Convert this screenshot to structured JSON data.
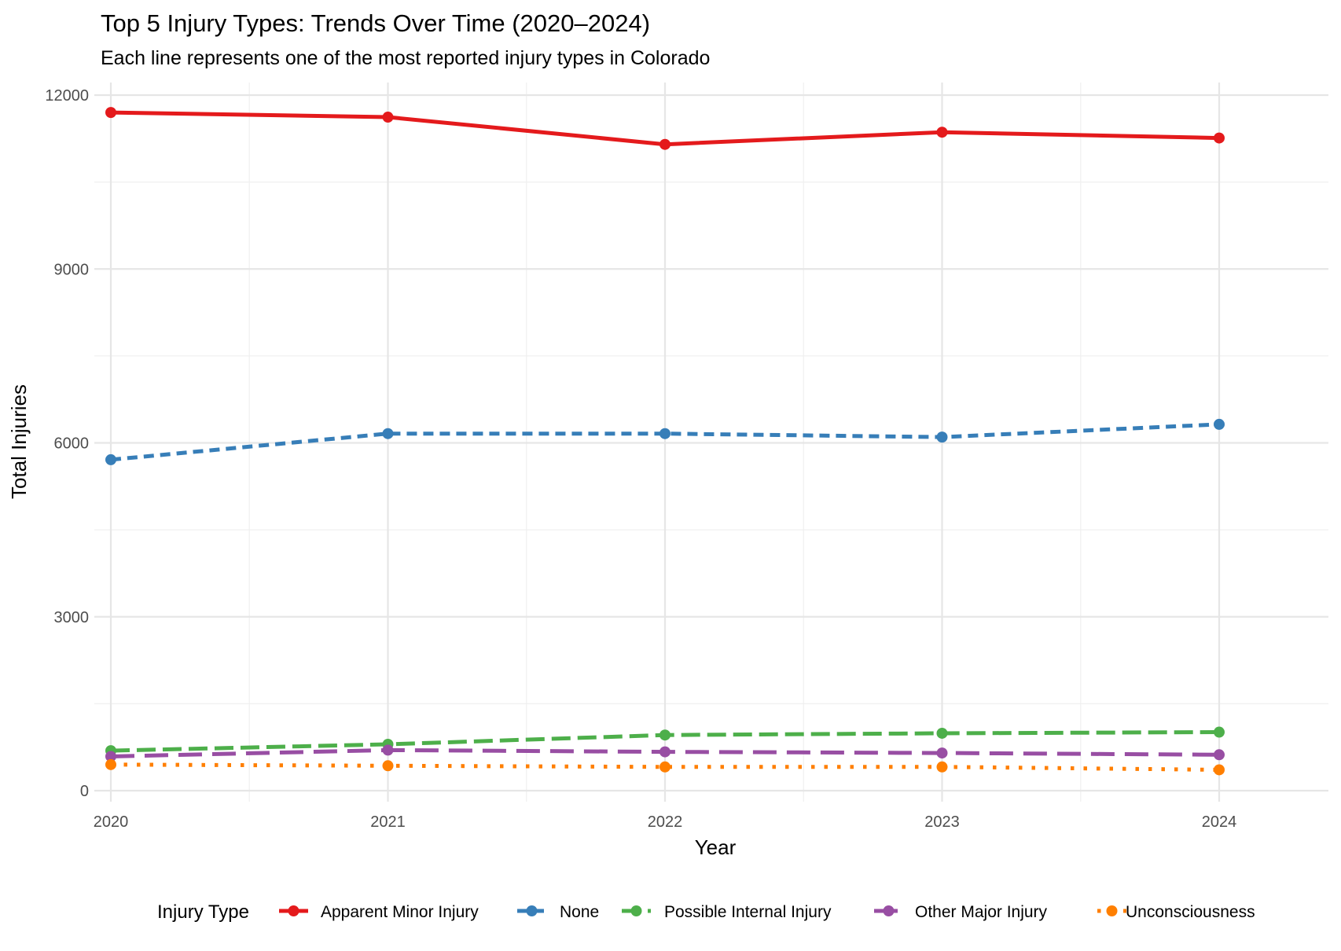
{
  "chart_data": {
    "type": "line",
    "title": "Top 5 Injury Types: Trends Over Time (2020–2024)",
    "subtitle": "Each line represents one of the most reported injury types in Colorado",
    "xlabel": "Year",
    "ylabel": "Total Injuries",
    "x": [
      2020,
      2021,
      2022,
      2023,
      2024
    ],
    "x_tick_labels": [
      "2020",
      "2021",
      "2022",
      "2023",
      "2024"
    ],
    "y_ticks": [
      0,
      3000,
      6000,
      9000,
      12000
    ],
    "y_tick_labels": [
      "0",
      "3000",
      "6000",
      "9000",
      "12000"
    ],
    "xlim": [
      2020,
      2024.4
    ],
    "ylim": [
      0,
      12000
    ],
    "grid": true,
    "legend": {
      "title": "Injury Type",
      "placement": "bottom"
    },
    "series": [
      {
        "name": "Apparent Minor Injury",
        "color": "#E41A1C",
        "line_style": "solid",
        "values": [
          11700,
          11620,
          11150,
          11360,
          11260
        ]
      },
      {
        "name": "None",
        "color": "#377EB8",
        "line_style": "dashed",
        "values": [
          5710,
          6160,
          6160,
          6100,
          6320
        ]
      },
      {
        "name": "Possible Internal Injury",
        "color": "#4DAF4A",
        "line_style": "longdash",
        "values": [
          690,
          800,
          960,
          990,
          1010
        ]
      },
      {
        "name": "Other Major Injury",
        "color": "#984EA3",
        "line_style": "long-dashed",
        "values": [
          590,
          700,
          670,
          650,
          620
        ]
      },
      {
        "name": "Unconsciousness",
        "color": "#FF7F00",
        "line_style": "dotted",
        "values": [
          450,
          430,
          410,
          410,
          360
        ]
      }
    ]
  }
}
